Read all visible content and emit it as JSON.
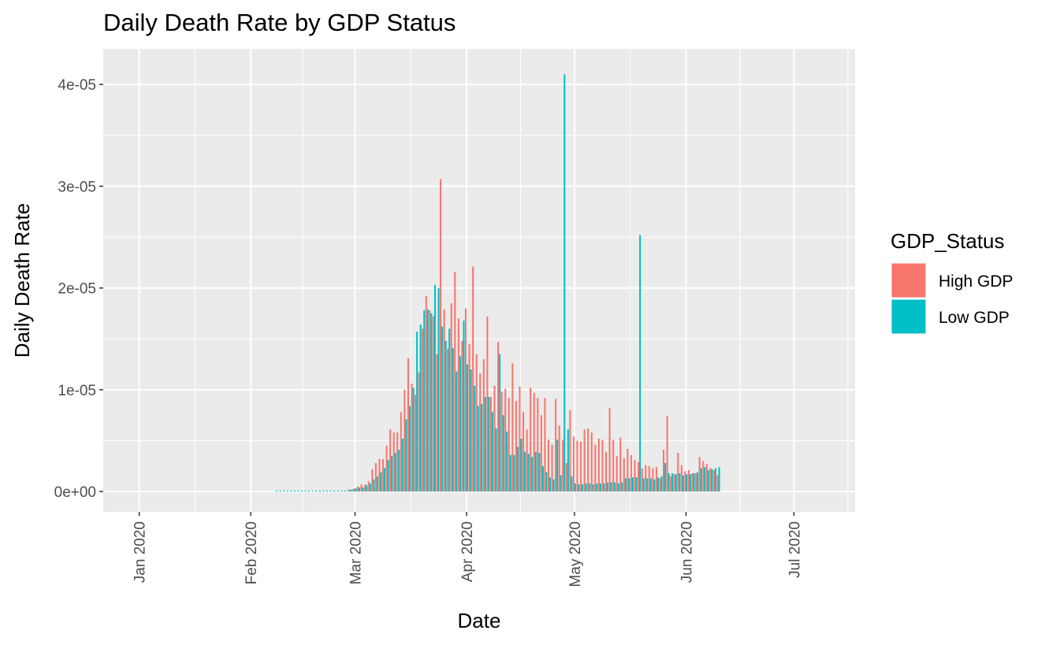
{
  "chart_data": {
    "type": "bar",
    "title": "Daily Death Rate by GDP Status",
    "xlabel": "Date",
    "ylabel": "Daily Death Rate",
    "x_range": [
      "2019-12-22",
      "2020-07-18"
    ],
    "ylim": [
      -2e-06,
      4.35e-05
    ],
    "y_ticks": [
      {
        "value": 0,
        "label": "0e+00"
      },
      {
        "value": 1e-05,
        "label": "1e-05"
      },
      {
        "value": 2e-05,
        "label": "2e-05"
      },
      {
        "value": 3e-05,
        "label": "3e-05"
      },
      {
        "value": 4e-05,
        "label": "4e-05"
      }
    ],
    "x_ticks": [
      {
        "date": "2020-01-01",
        "label": "Jan 2020"
      },
      {
        "date": "2020-02-01",
        "label": "Feb 2020"
      },
      {
        "date": "2020-03-01",
        "label": "Mar 2020"
      },
      {
        "date": "2020-04-01",
        "label": "Apr 2020"
      },
      {
        "date": "2020-05-01",
        "label": "May 2020"
      },
      {
        "date": "2020-06-01",
        "label": "Jun 2020"
      },
      {
        "date": "2020-07-01",
        "label": "Jul 2020"
      }
    ],
    "grid": true,
    "legend": {
      "title": "GDP_Status",
      "position": "right"
    },
    "position": "dodge",
    "start_date": "2020-02-08",
    "series": [
      {
        "name": "High GDP",
        "color": "#F8766D",
        "values": [
          0,
          0,
          0,
          0,
          0,
          0,
          0,
          0,
          0,
          0,
          0,
          0,
          0,
          0,
          0,
          0,
          0,
          0,
          0,
          0,
          0,
          2e-07,
          3e-07,
          5e-07,
          7e-07,
          7e-07,
          1e-06,
          2.2e-06,
          2.8e-06,
          3.2e-06,
          3.2e-06,
          4.5e-06,
          6.1e-06,
          5.8e-06,
          5.8e-06,
          7.8e-06,
          1e-05,
          1.31e-05,
          1.06e-05,
          9.5e-06,
          1.17e-05,
          1.6e-05,
          1.92e-05,
          1.78e-05,
          1.72e-05,
          1.35e-05,
          3.07e-05,
          1.79e-05,
          1.4e-05,
          1.85e-05,
          2.16e-05,
          1.7e-05,
          1.48e-05,
          1.8e-05,
          1.45e-05,
          2.21e-05,
          1.35e-05,
          1.16e-05,
          1.3e-05,
          1.72e-05,
          9.3e-06,
          1.04e-05,
          1.47e-05,
          9.8e-06,
          1.01e-05,
          9.2e-06,
          1.26e-05,
          8.9e-06,
          1.03e-05,
          7.8e-06,
          6.1e-06,
          1.02e-05,
          9.7e-06,
          9.2e-06,
          7.5e-06,
          9.2e-06,
          5.1e-06,
          4.6e-06,
          9.1e-06,
          6.5e-06,
          5.1e-06,
          2.8e-06,
          8e-06,
          5.4e-06,
          5e-06,
          4.9e-06,
          6.1e-06,
          6.2e-06,
          5.8e-06,
          4.6e-06,
          5.2e-06,
          5.1e-06,
          3.9e-06,
          8.2e-06,
          5.1e-06,
          3.5e-06,
          5.3e-06,
          3.3e-06,
          4.2e-06,
          3.6e-06,
          3.1e-06,
          2.9e-06,
          2.3e-06,
          2.6e-06,
          2.5e-06,
          2.3e-06,
          2.4e-06,
          1.3e-06,
          4.1e-06,
          7.4e-06,
          1.5e-06,
          1.7e-06,
          3.8e-06,
          2.6e-06,
          2e-06,
          2.1e-06,
          1.8e-06,
          1.8e-06,
          3.4e-06,
          3e-06,
          2.7e-06,
          2.3e-06,
          2.1e-06,
          1.6e-06
        ]
      },
      {
        "name": "Low GDP",
        "color": "#00BFC4",
        "values": [
          1e-07,
          1e-07,
          1e-07,
          1e-07,
          1e-07,
          1e-07,
          1e-07,
          1e-07,
          1e-07,
          1e-07,
          1e-07,
          1e-07,
          1e-07,
          1e-07,
          1e-07,
          1e-07,
          1e-07,
          1e-07,
          1e-07,
          1e-07,
          2e-07,
          2e-07,
          3e-07,
          4e-07,
          4e-07,
          6e-07,
          8e-07,
          1.2e-06,
          1.5e-06,
          1.9e-06,
          2.3e-06,
          3.1e-06,
          3.5e-06,
          3.8e-06,
          4.1e-06,
          5.2e-06,
          7.1e-06,
          8.4e-06,
          1.02e-05,
          1.57e-05,
          1.64e-05,
          1.78e-05,
          1.79e-05,
          1.75e-05,
          2.03e-05,
          2e-05,
          1.62e-05,
          1.48e-05,
          1.6e-05,
          1.41e-05,
          1.18e-05,
          1.33e-05,
          1.68e-05,
          1.25e-05,
          1.2e-05,
          1.04e-05,
          8.4e-06,
          8.6e-06,
          9.3e-06,
          9.3e-06,
          7.8e-06,
          6.2e-06,
          1.35e-05,
          7.5e-06,
          5.9e-06,
          3.6e-06,
          3.6e-06,
          4.4e-06,
          5.2e-06,
          3.9e-06,
          3.7e-06,
          3.4e-06,
          3.9e-06,
          3.8e-06,
          2.5e-06,
          1.9e-06,
          1.4e-06,
          1.2e-06,
          5.1e-06,
          1.6e-06,
          4.1e-05,
          6.1e-06,
          1.5e-06,
          8e-07,
          7e-07,
          7e-07,
          8e-07,
          8e-07,
          7e-07,
          8e-07,
          8e-07,
          8e-07,
          9e-07,
          9e-07,
          9e-07,
          8e-07,
          9e-07,
          1.3e-06,
          1.3e-06,
          1.4e-06,
          1.4e-06,
          2.52e-05,
          1.3e-06,
          1.3e-06,
          1.3e-06,
          1.2e-06,
          1.4e-06,
          1.5e-06,
          2.8e-06,
          1.8e-06,
          1.8e-06,
          1.7e-06,
          1.8e-06,
          1.6e-06,
          1.7e-06,
          1.7e-06,
          1.8e-06,
          1.9e-06,
          2.3e-06,
          2.4e-06,
          2.1e-06,
          2.2e-06,
          2.3e-06,
          2.4e-06
        ]
      }
    ]
  }
}
